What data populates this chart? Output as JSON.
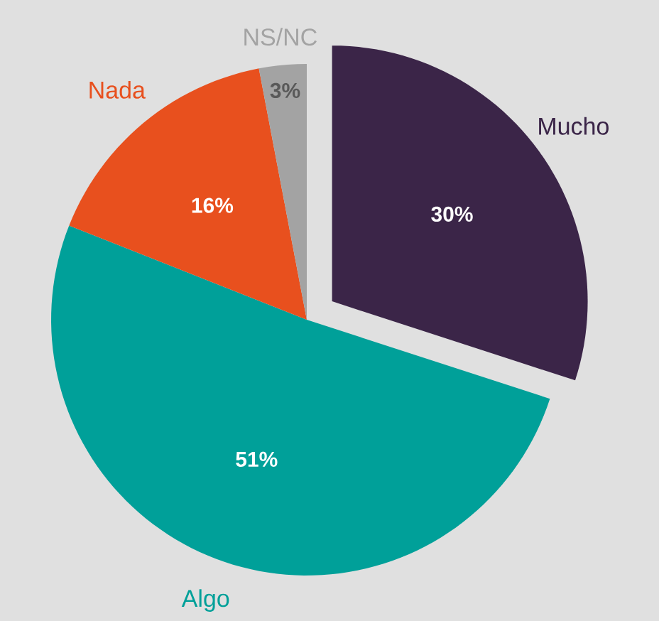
{
  "chart_data": {
    "type": "pie",
    "categories": [
      "Mucho",
      "Algo",
      "Nada",
      "NS/NC"
    ],
    "values": [
      30,
      51,
      16,
      3
    ],
    "colors": [
      "#3b2548",
      "#00a099",
      "#e8501e",
      "#a3a3a3"
    ],
    "value_labels": [
      "30%",
      "51%",
      "16%",
      "3%"
    ]
  }
}
